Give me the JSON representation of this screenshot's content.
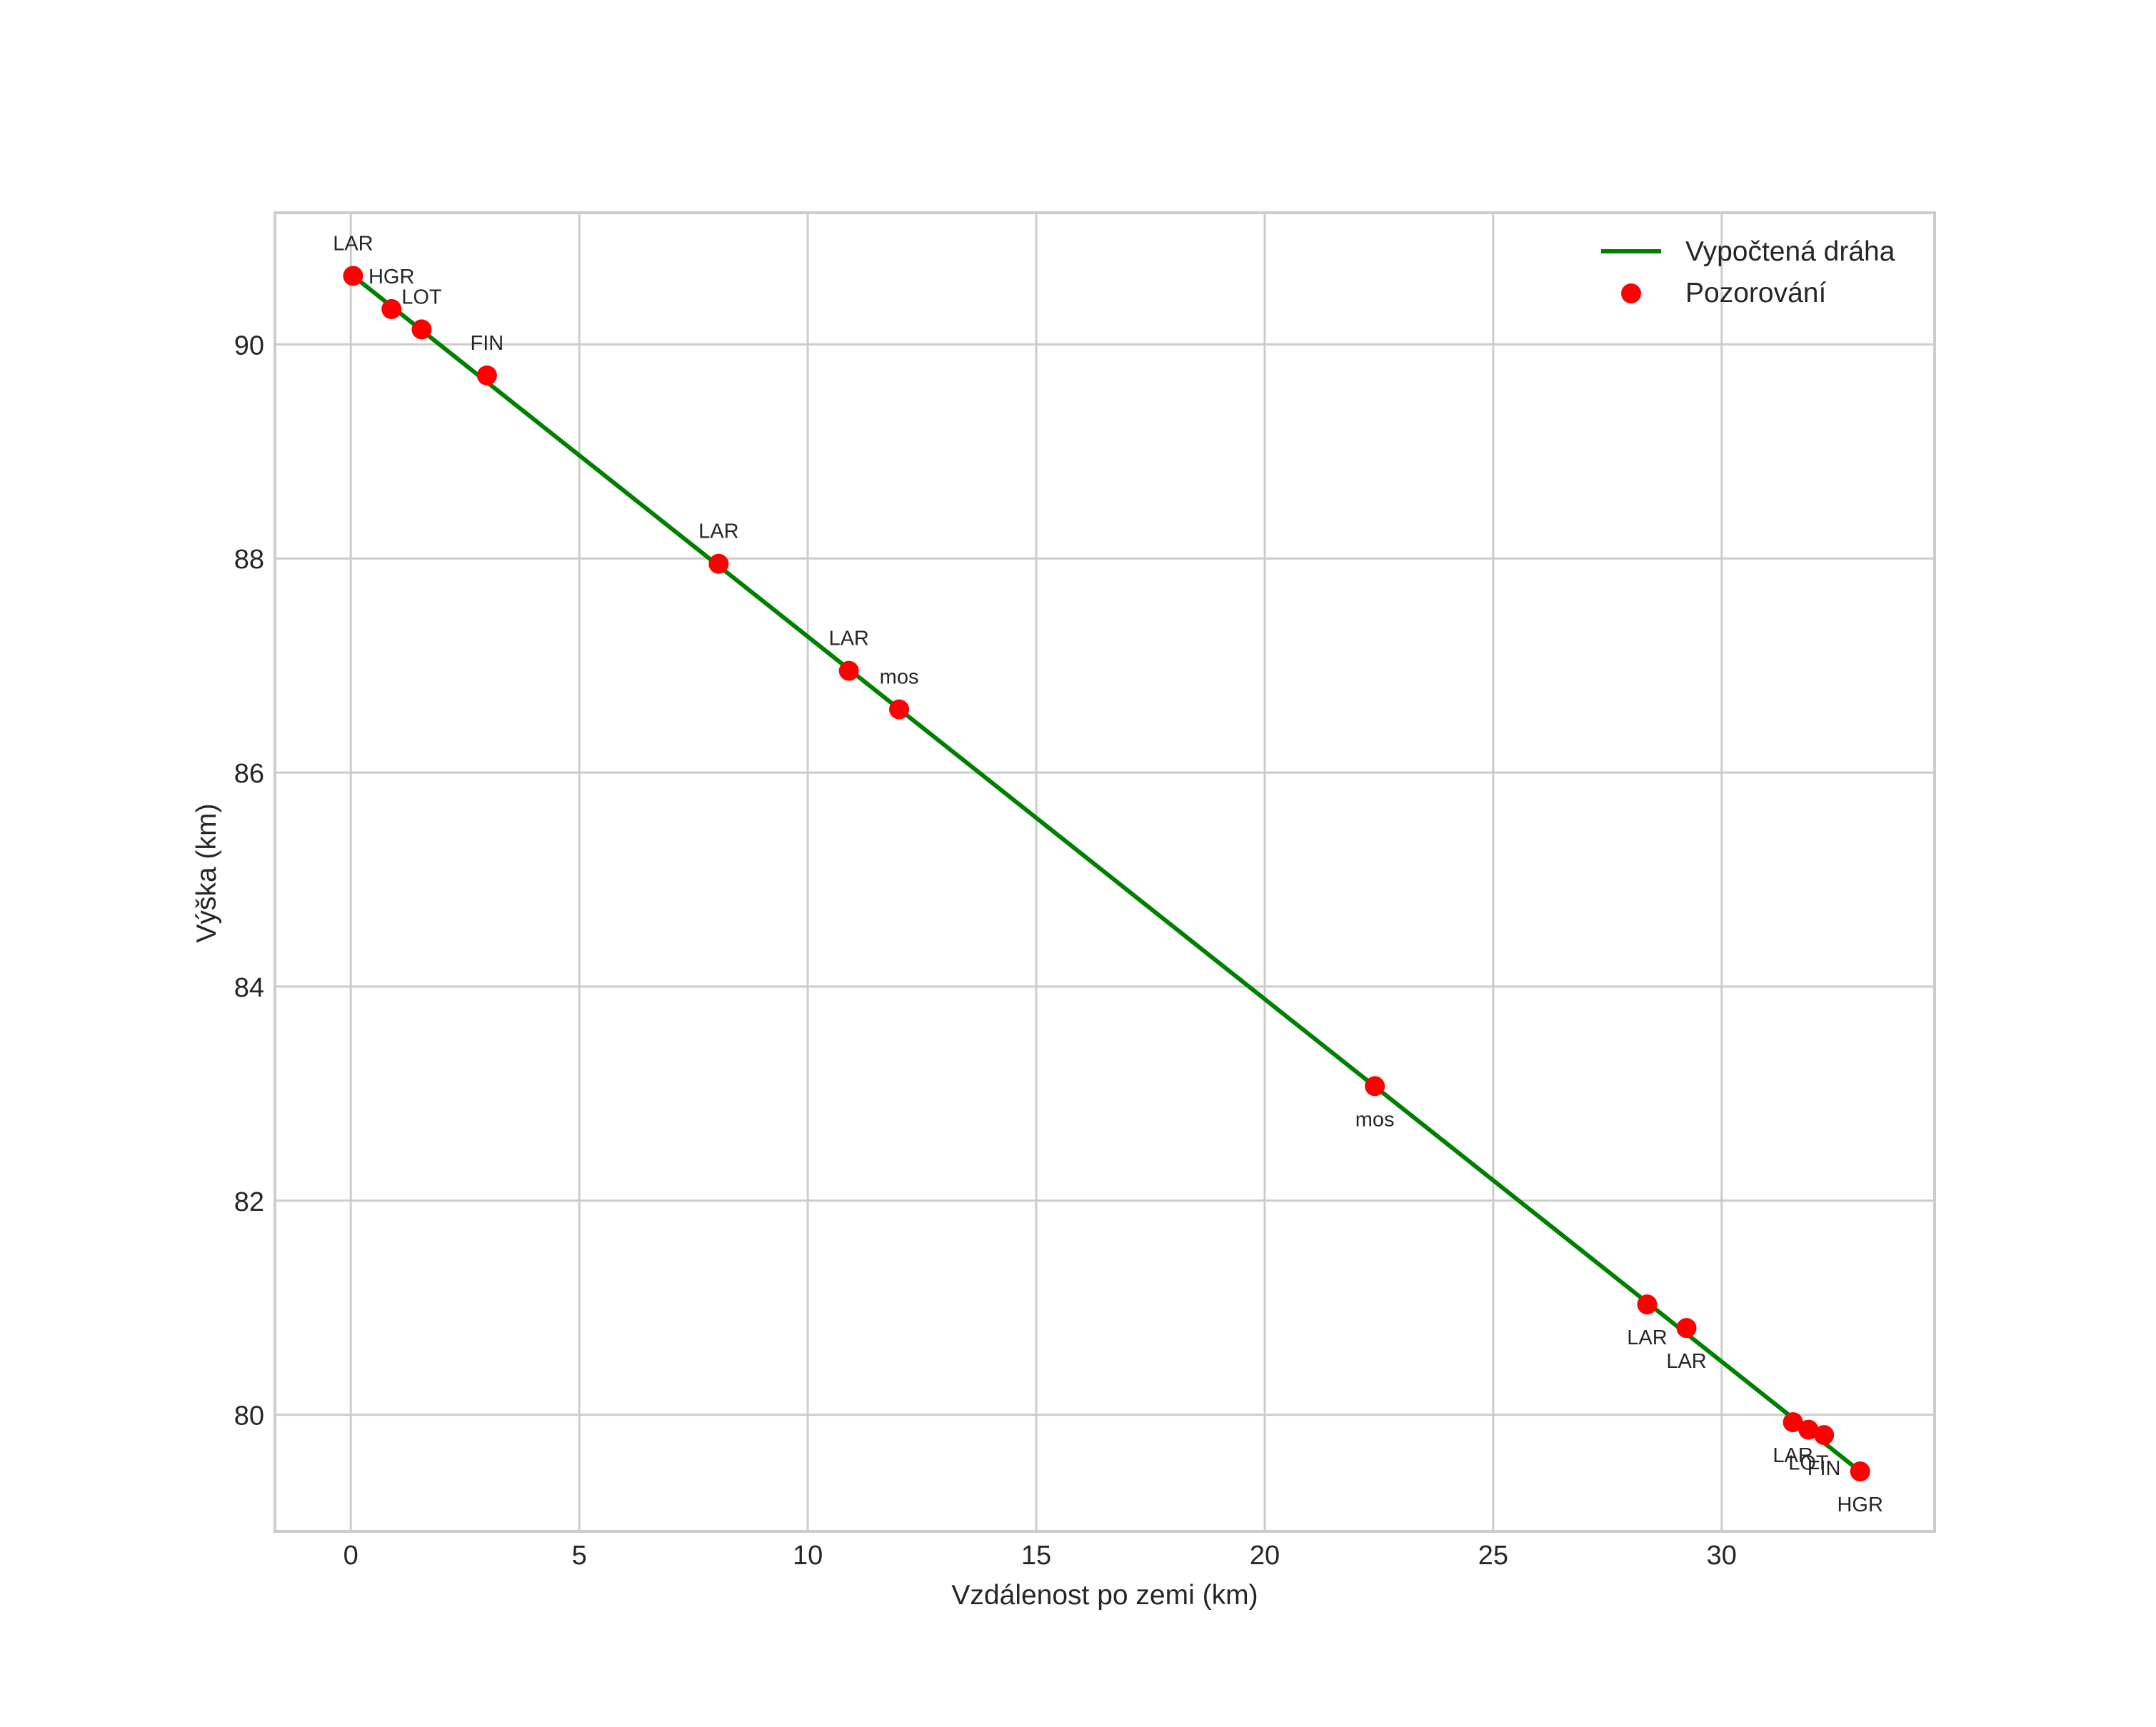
{
  "chart_data": {
    "type": "line",
    "title": "",
    "xlabel": "Vzdálenost po zemi (km)",
    "ylabel": "Výška (km)",
    "xlim": [
      -1.66,
      34.66
    ],
    "ylim": [
      78.91,
      91.23
    ],
    "xticks": [
      0,
      5,
      10,
      15,
      20,
      25,
      30
    ],
    "yticks": [
      80,
      82,
      84,
      86,
      88,
      90
    ],
    "grid": true,
    "legend_position": "upper right",
    "series": [
      {
        "name": "Vypočtená dráha",
        "type": "line",
        "color": "#008000",
        "x": [
          0.05,
          33.03
        ],
        "y": [
          90.64,
          79.47
        ]
      },
      {
        "name": "Pozorování",
        "type": "scatter",
        "color": "#ff0000",
        "points": [
          {
            "x": 0.05,
            "y": 90.64,
            "label": "LAR",
            "label_pos": "above"
          },
          {
            "x": 0.89,
            "y": 90.33,
            "label": "HGR",
            "label_pos": "above"
          },
          {
            "x": 1.55,
            "y": 90.14,
            "label": "LOT",
            "label_pos": "above"
          },
          {
            "x": 2.98,
            "y": 89.71,
            "label": "FIN",
            "label_pos": "above"
          },
          {
            "x": 8.05,
            "y": 87.95,
            "label": "LAR",
            "label_pos": "above"
          },
          {
            "x": 10.9,
            "y": 86.95,
            "label": "LAR",
            "label_pos": "above"
          },
          {
            "x": 12.0,
            "y": 86.59,
            "label": "mos",
            "label_pos": "above"
          },
          {
            "x": 22.41,
            "y": 83.07,
            "label": "mos",
            "label_pos": "below"
          },
          {
            "x": 28.37,
            "y": 81.03,
            "label": "LAR",
            "label_pos": "below"
          },
          {
            "x": 29.23,
            "y": 80.81,
            "label": "LAR",
            "label_pos": "below"
          },
          {
            "x": 31.56,
            "y": 79.93,
            "label": "LAR",
            "label_pos": "below"
          },
          {
            "x": 31.9,
            "y": 79.86,
            "label": "LOT",
            "label_pos": "below"
          },
          {
            "x": 32.24,
            "y": 79.81,
            "label": "FIN",
            "label_pos": "below"
          },
          {
            "x": 33.03,
            "y": 79.47,
            "label": "HGR",
            "label_pos": "below"
          }
        ]
      }
    ],
    "legend": [
      {
        "label": "Vypočtená dráha",
        "marker": "line",
        "color": "#008000"
      },
      {
        "label": "Pozorování",
        "marker": "circle",
        "color": "#ff0000"
      }
    ]
  },
  "style": {
    "grid_color": "#cccccc",
    "frame_color": "#cccccc",
    "text_color": "#262626"
  }
}
